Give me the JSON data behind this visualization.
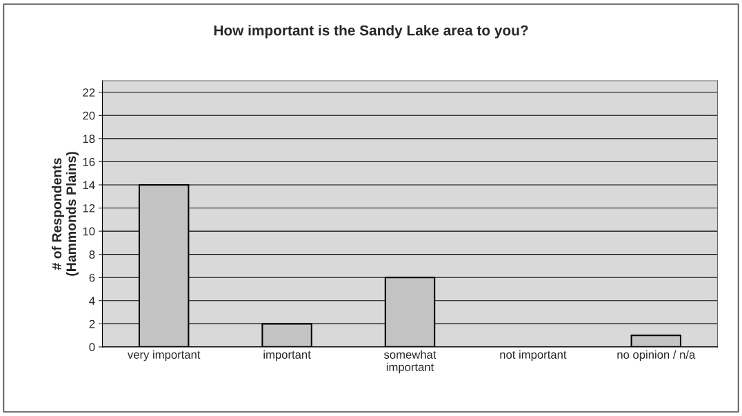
{
  "chart_data": {
    "type": "bar",
    "title": "How important is the Sandy Lake area to you?",
    "ylabel": "# of Respondents\n(Hammonds Plains)",
    "categories": [
      "very important",
      "important",
      "somewhat\nimportant",
      "not important",
      "no opinion / n/a"
    ],
    "values": [
      14,
      2,
      6,
      0,
      1
    ],
    "color": "#c4c4c4",
    "ylim": [
      0,
      23
    ],
    "yticks": [
      0,
      2,
      4,
      6,
      8,
      10,
      12,
      14,
      16,
      18,
      20,
      22
    ],
    "grid": "y",
    "legend": false
  }
}
